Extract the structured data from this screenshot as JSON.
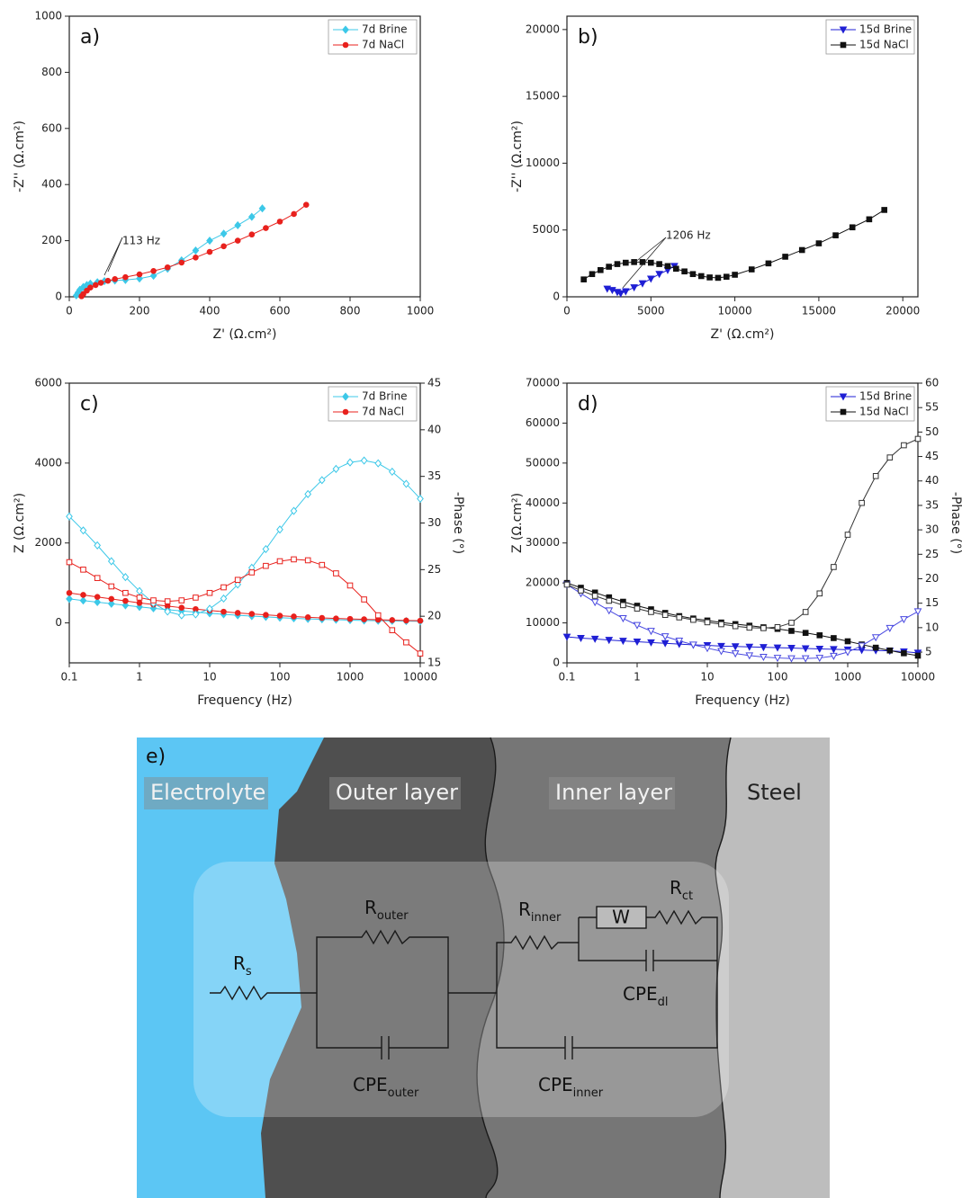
{
  "chart_data": [
    {
      "type": "line",
      "label": "a)",
      "xlabel": "Z' (Ω.cm²)",
      "ylabel": "-Z'' (Ω.cm²)",
      "xlim": [
        0,
        1000
      ],
      "ylim": [
        0,
        1000
      ],
      "xticks": [
        0,
        200,
        400,
        600,
        800,
        1000
      ],
      "yticks": [
        0,
        200,
        400,
        600,
        800,
        1000
      ],
      "annotations": [
        "113 Hz"
      ],
      "legend": "upper right",
      "series": [
        {
          "name": "7d Brine",
          "color": "#3cc8e8",
          "marker": "diamond",
          "x": [
            20,
            25,
            30,
            40,
            50,
            60,
            80,
            100,
            130,
            160,
            200,
            240,
            280,
            320,
            360,
            400,
            440,
            480,
            520,
            550
          ],
          "values": [
            5,
            15,
            25,
            35,
            42,
            47,
            52,
            56,
            58,
            60,
            65,
            75,
            100,
            130,
            165,
            200,
            225,
            255,
            285,
            315
          ]
        },
        {
          "name": "7d NaCl",
          "color": "#e8211d",
          "marker": "circle",
          "x": [
            35,
            40,
            50,
            60,
            75,
            90,
            110,
            130,
            160,
            200,
            240,
            280,
            320,
            360,
            400,
            440,
            480,
            520,
            560,
            600,
            640,
            675
          ],
          "values": [
            2,
            10,
            22,
            33,
            42,
            50,
            57,
            63,
            70,
            80,
            92,
            105,
            122,
            140,
            160,
            180,
            200,
            222,
            245,
            268,
            295,
            328
          ]
        }
      ]
    },
    {
      "type": "line",
      "label": "b)",
      "xlabel": "Z' (Ω.cm²)",
      "ylabel": "-Z'' (Ω.cm²)",
      "xlim": [
        0,
        20900
      ],
      "ylim": [
        0,
        21000
      ],
      "xticks": [
        0,
        5000,
        10000,
        15000,
        20000
      ],
      "yticks": [
        0,
        5000,
        10000,
        15000,
        20000
      ],
      "annotations": [
        "1206 Hz"
      ],
      "legend": "upper right",
      "series": [
        {
          "name": "15d Brine",
          "color": "#1f1fd4",
          "marker": "triangle",
          "x": [
            2400,
            2700,
            3000,
            3200,
            3500,
            4000,
            4500,
            5000,
            5500,
            6000,
            6400
          ],
          "values": [
            600,
            500,
            350,
            250,
            400,
            700,
            1000,
            1350,
            1700,
            2000,
            2300
          ]
        },
        {
          "name": "15d NaCl",
          "color": "#111111",
          "marker": "square",
          "x": [
            1000,
            1500,
            2000,
            2500,
            3000,
            3500,
            4000,
            4500,
            5000,
            5500,
            6000,
            6500,
            7000,
            7500,
            8000,
            8500,
            9000,
            9500,
            10000,
            11000,
            12000,
            13000,
            14000,
            15000,
            16000,
            17000,
            18000,
            18900
          ],
          "values": [
            1300,
            1700,
            2000,
            2250,
            2450,
            2550,
            2600,
            2600,
            2550,
            2450,
            2300,
            2100,
            1900,
            1700,
            1550,
            1450,
            1420,
            1500,
            1650,
            2050,
            2500,
            3000,
            3500,
            4000,
            4600,
            5200,
            5800,
            6500
          ]
        }
      ]
    },
    {
      "type": "line",
      "label": "c)",
      "xlabel": "Frequency (Hz)",
      "ylabel": "Z (Ω.cm²)",
      "y2label": "-Phase (°)",
      "xscale": "log",
      "xlim": [
        0.1,
        10000
      ],
      "ylim": [
        -1000,
        6000
      ],
      "y2lim": [
        15,
        45
      ],
      "xticks": [
        0.1,
        1,
        10,
        100,
        1000,
        10000
      ],
      "yticks": [
        0,
        2000,
        4000,
        6000
      ],
      "y2ticks": [
        15,
        20,
        25,
        30,
        35,
        40,
        45
      ],
      "legend": "upper right",
      "x": [
        0.1,
        0.158,
        0.251,
        0.398,
        0.631,
        1,
        1.58,
        2.51,
        3.98,
        6.31,
        10,
        15.8,
        25.1,
        39.8,
        63.1,
        100,
        158,
        251,
        398,
        631,
        1000,
        1585,
        2512,
        3981,
        6310,
        10000
      ],
      "series": [
        {
          "name": "7d Brine",
          "color": "#3cc8e8",
          "marker": "diamond",
          "values": [
            600,
            560,
            520,
            480,
            440,
            400,
            365,
            330,
            300,
            270,
            240,
            215,
            190,
            170,
            150,
            130,
            115,
            100,
            90,
            80,
            70,
            60,
            55,
            50,
            45,
            40
          ]
        },
        {
          "name": "7d NaCl",
          "color": "#e8211d",
          "marker": "circle",
          "values": [
            750,
            700,
            650,
            600,
            550,
            500,
            460,
            420,
            380,
            345,
            310,
            280,
            250,
            225,
            200,
            180,
            160,
            140,
            125,
            110,
            100,
            90,
            80,
            70,
            60,
            55
          ]
        },
        {
          "color": "#3cc8e8",
          "marker": "diamond",
          "open": true,
          "axis": "y2",
          "values": [
            30.7,
            29.2,
            27.6,
            25.9,
            24.2,
            22.7,
            21.4,
            20.5,
            20.1,
            20.2,
            20.8,
            21.9,
            23.4,
            25.2,
            27.2,
            29.3,
            31.3,
            33.1,
            34.6,
            35.8,
            36.5,
            36.7,
            36.4,
            35.5,
            34.2,
            32.6
          ]
        },
        {
          "color": "#e8211d",
          "marker": "square",
          "open": true,
          "axis": "y2",
          "values": [
            25.8,
            25.0,
            24.1,
            23.2,
            22.5,
            22.0,
            21.7,
            21.6,
            21.7,
            22.0,
            22.5,
            23.1,
            23.9,
            24.7,
            25.4,
            25.9,
            26.1,
            26.0,
            25.5,
            24.6,
            23.3,
            21.8,
            20.1,
            18.5,
            17.2,
            16.0
          ]
        }
      ]
    },
    {
      "type": "line",
      "label": "d)",
      "xlabel": "Frequency (Hz)",
      "ylabel": "Z (Ω.cm²)",
      "y2label": "-Phase (°)",
      "xscale": "log",
      "xlim": [
        0.1,
        10000
      ],
      "ylim": [
        0,
        70000
      ],
      "y2lim": [
        2.8,
        60
      ],
      "xticks": [
        0.1,
        1,
        10,
        100,
        1000,
        10000
      ],
      "yticks": [
        0,
        10000,
        20000,
        30000,
        40000,
        50000,
        60000,
        70000
      ],
      "y2ticks": [
        5,
        10,
        15,
        20,
        25,
        30,
        35,
        40,
        45,
        50,
        55,
        60
      ],
      "legend": "upper right",
      "x": [
        0.1,
        0.158,
        0.251,
        0.398,
        0.631,
        1,
        1.58,
        2.51,
        3.98,
        6.31,
        10,
        15.8,
        25.1,
        39.8,
        63.1,
        100,
        158,
        251,
        398,
        631,
        1000,
        1585,
        2512,
        3981,
        6310,
        10000
      ],
      "series": [
        {
          "name": "15d Brine",
          "color": "#1f1fd4",
          "marker": "triangle",
          "values": [
            6500,
            6200,
            6000,
            5700,
            5500,
            5300,
            5100,
            4900,
            4700,
            4500,
            4400,
            4200,
            4100,
            4000,
            3900,
            3800,
            3700,
            3600,
            3500,
            3400,
            3300,
            3200,
            3100,
            3000,
            2800,
            2500
          ]
        },
        {
          "name": "15d NaCl",
          "color": "#111111",
          "marker": "square",
          "values": [
            20000,
            18800,
            17600,
            16400,
            15300,
            14300,
            13400,
            12500,
            11700,
            11100,
            10600,
            10100,
            9700,
            9300,
            8900,
            8500,
            8000,
            7500,
            6900,
            6200,
            5400,
            4600,
            3800,
            3100,
            2400,
            1800
          ]
        },
        {
          "color": "#4a4ae0",
          "marker": "triangle",
          "open": true,
          "axis": "y2",
          "values": [
            18.8,
            17.0,
            15.2,
            13.5,
            11.9,
            10.5,
            9.3,
            8.2,
            7.3,
            6.5,
            5.8,
            5.2,
            4.7,
            4.3,
            4.0,
            3.8,
            3.7,
            3.7,
            3.8,
            4.2,
            5.0,
            6.3,
            8.0,
            9.9,
            11.7,
            13.3
          ]
        },
        {
          "color": "#333333",
          "marker": "square",
          "open": true,
          "axis": "y2",
          "values": [
            18.8,
            17.6,
            16.5,
            15.5,
            14.6,
            13.9,
            13.2,
            12.6,
            12.1,
            11.6,
            11.1,
            10.7,
            10.3,
            10.0,
            9.9,
            10.1,
            11.0,
            13.2,
            17.0,
            22.4,
            29.0,
            35.5,
            41.0,
            44.8,
            47.3,
            48.6
          ]
        }
      ]
    }
  ],
  "diagram": {
    "label": "e)",
    "regions": [
      "Electrolyte",
      "Outer layer",
      "Inner layer",
      "Steel"
    ],
    "elements": [
      {
        "main": "R",
        "sub": "s"
      },
      {
        "main": "R",
        "sub": "outer"
      },
      {
        "main": "CPE",
        "sub": "outer"
      },
      {
        "main": "R",
        "sub": "inner"
      },
      {
        "main": "W"
      },
      {
        "main": "R",
        "sub": "ct"
      },
      {
        "main": "CPE",
        "sub": "dl"
      },
      {
        "main": "CPE",
        "sub": "inner"
      }
    ]
  }
}
